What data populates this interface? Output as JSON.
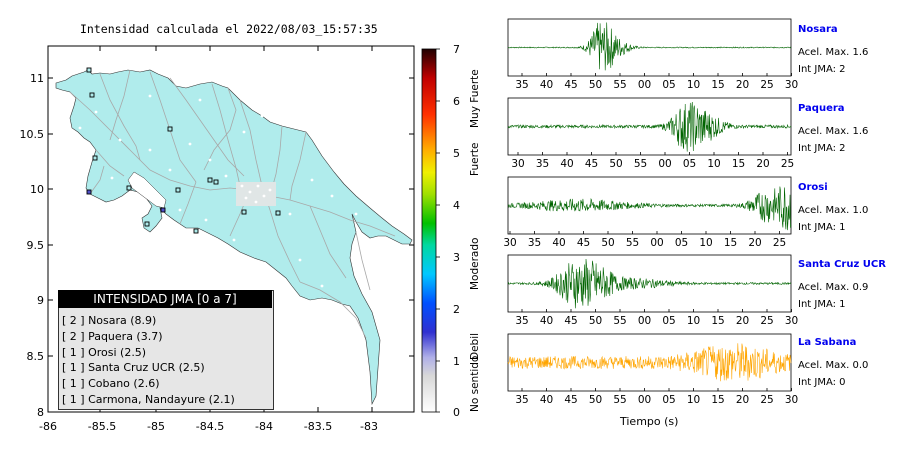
{
  "map": {
    "title": "Intensidad calculada el 2022/08/03_15:57:35",
    "y_ticks": [
      "11",
      "10.5",
      "10",
      "9.5",
      "9",
      "8.5",
      "8"
    ],
    "x_ticks": [
      "-86",
      "-85.5",
      "-85",
      "-84.5",
      "-84",
      "-83.5",
      "-83"
    ]
  },
  "colorbar": {
    "ticks": [
      "0",
      "1",
      "2",
      "3",
      "4",
      "5",
      "6",
      "7"
    ],
    "labels": [
      "No sentido",
      "Debil",
      "Moderado",
      "Fuerte",
      "Muy Fuerte"
    ]
  },
  "legend": {
    "title": "INTENSIDAD JMA [0 a 7]",
    "items": [
      "[ 2 ]  Nosara (8.9)",
      "[ 2 ]  Paquera (3.7)",
      "[ 1 ]  Orosi (2.5)",
      "[ 1 ]  Santa Cruz UCR (2.5)",
      "[ 1 ]  Cobano (2.6)",
      "[ 1 ]  Carmona, Nandayure (2.1)"
    ]
  },
  "stations": [
    {
      "name": "Nosara",
      "acc": "Acel. Max. 1.6",
      "jma": "Int JMA: 2",
      "color": "#006400",
      "ticks": [
        "35",
        "40",
        "45",
        "50",
        "55",
        "00",
        "05",
        "10",
        "15",
        "20",
        "25",
        "30"
      ]
    },
    {
      "name": "Paquera",
      "acc": "Acel. Max. 1.6",
      "jma": "Int JMA: 2",
      "color": "#006400",
      "ticks": [
        "30",
        "35",
        "40",
        "45",
        "50",
        "55",
        "00",
        "05",
        "10",
        "15",
        "20",
        "25"
      ]
    },
    {
      "name": "Orosi",
      "acc": "Acel. Max. 1.0",
      "jma": "Int JMA: 1",
      "color": "#006400",
      "ticks": [
        "30",
        "35",
        "40",
        "45",
        "50",
        "55",
        "00",
        "05",
        "10",
        "15",
        "20",
        "25"
      ]
    },
    {
      "name": "Santa Cruz UCR",
      "acc": "Acel. Max. 0.9",
      "jma": "Int JMA: 1",
      "color": "#006400",
      "ticks": [
        "35",
        "40",
        "45",
        "50",
        "55",
        "00",
        "05",
        "10",
        "15",
        "20",
        "25",
        "30"
      ]
    },
    {
      "name": "La Sabana",
      "acc": "Acel. Max. 0.0",
      "jma": "Int JMA: 0",
      "color": "#ffa500",
      "ticks": [
        "35",
        "40",
        "45",
        "50",
        "55",
        "00",
        "05",
        "10",
        "15",
        "20",
        "25",
        "30"
      ]
    }
  ],
  "xlabel": "Tiempo (s)",
  "colors": {
    "land": "#b0ecec",
    "roads": "#a8a8a8",
    "trace_green": "#006400",
    "trace_orange": "#ffa500"
  }
}
